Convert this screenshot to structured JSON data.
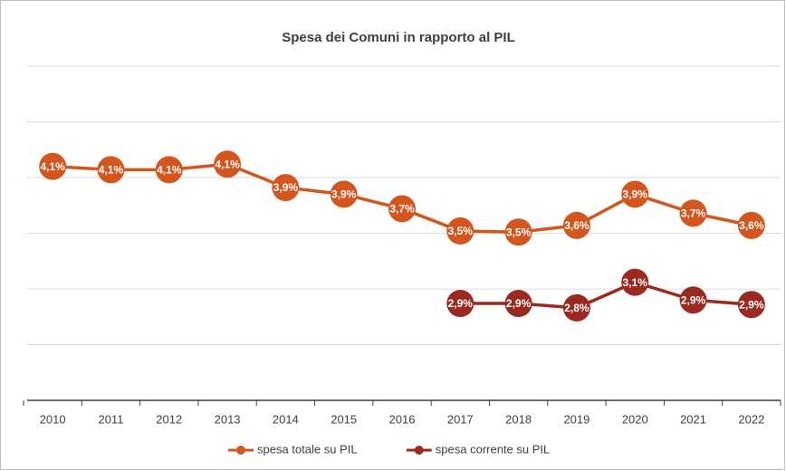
{
  "chart_data": {
    "type": "line",
    "title": "Spesa dei Comuni in rapporto al PIL",
    "categories": [
      "2010",
      "2011",
      "2012",
      "2013",
      "2014",
      "2015",
      "2016",
      "2017",
      "2018",
      "2019",
      "2020",
      "2021",
      "2022"
    ],
    "series": [
      {
        "name": "spesa totale su PIL",
        "color": "#d4561f",
        "values": [
          4.1,
          4.07,
          4.07,
          4.12,
          3.91,
          3.85,
          3.72,
          3.52,
          3.51,
          3.57,
          3.85,
          3.68,
          3.57
        ],
        "value_labels": [
          "4,1%",
          "4,1%",
          "4,1%",
          "4,1%",
          "3,9%",
          "3,9%",
          "3,7%",
          "3,5%",
          "3,5%",
          "3,6%",
          "3,9%",
          "3,7%",
          "3,6%"
        ]
      },
      {
        "name": "spesa corrente su PIL",
        "color": "#9a2a1f",
        "values": [
          null,
          null,
          null,
          null,
          null,
          null,
          null,
          2.87,
          2.87,
          2.83,
          3.06,
          2.9,
          2.86
        ],
        "value_labels": [
          null,
          null,
          null,
          null,
          null,
          null,
          null,
          "2,9%",
          "2,9%",
          "2,8%",
          "3,1%",
          "2,9%",
          "2,9%"
        ]
      }
    ],
    "ylim": [
      2,
      5
    ],
    "yticks": [
      2,
      2.5,
      3,
      3.5,
      4,
      4.5,
      5
    ],
    "grid": true,
    "legend": "bottom"
  }
}
